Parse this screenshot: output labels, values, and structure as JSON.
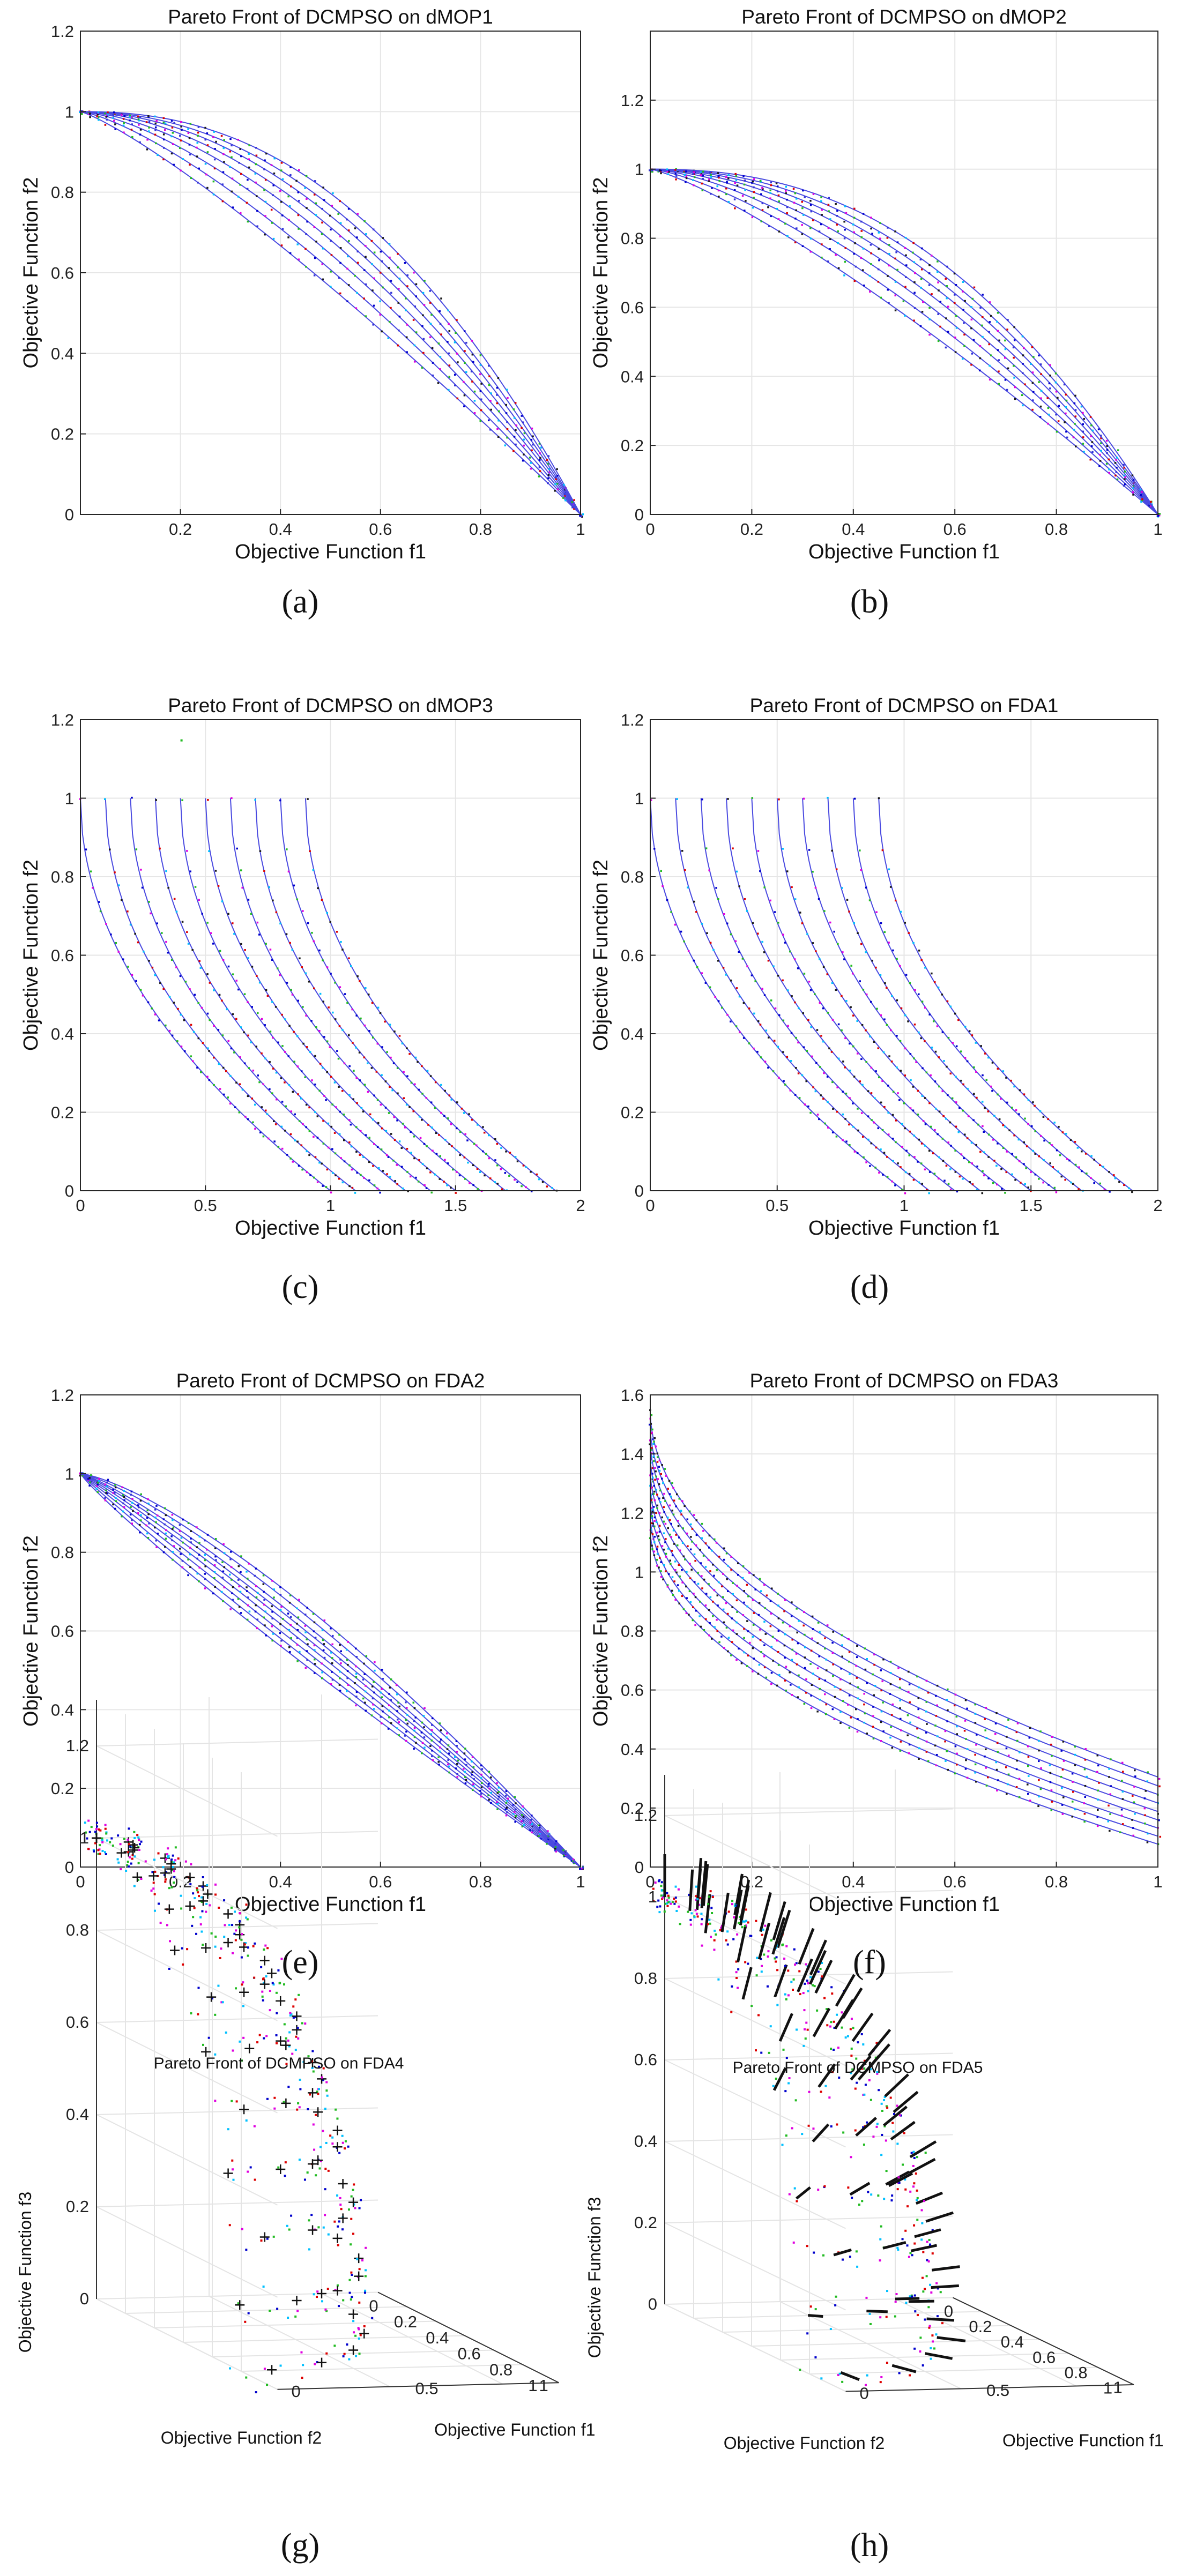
{
  "figure": {
    "captions": [
      "(a)",
      "(b)",
      "(c)",
      "(d)",
      "(e)",
      "(f)",
      "(g)",
      "(h)"
    ]
  },
  "chart_data": [
    {
      "id": "a",
      "type": "scatter",
      "title": "Pareto Front of DCMPSO on dMOP1",
      "xlabel": "Objective Function f1",
      "ylabel": "Objective Function f2",
      "xlim": [
        0,
        1
      ],
      "ylim": [
        0,
        1.2
      ],
      "xticks": [
        0.2,
        0.4,
        0.6,
        0.8,
        1
      ],
      "xtick_labels": [
        "0.2",
        "0.4",
        "0.6",
        "0.8",
        "1"
      ],
      "yticks": [
        0,
        0.2,
        0.4,
        0.6,
        0.8,
        1,
        1.2
      ],
      "ytick_labels": [
        "0",
        "0.2",
        "0.4",
        "0.6",
        "0.8",
        "1",
        "1.2"
      ],
      "family": "f2 = 1 - f1^H",
      "params": [
        1.2,
        1.35,
        1.5,
        1.65,
        1.8,
        1.95,
        2.1,
        2.3
      ],
      "series_colors": [
        "#3535d8",
        "#0000cc",
        "#1a1a1a",
        "#e000e0",
        "#00c0ff",
        "#22bb22",
        "#dd0000"
      ]
    },
    {
      "id": "b",
      "type": "scatter",
      "title": "Pareto Front of DCMPSO on dMOP2",
      "xlabel": "Objective Function f1",
      "ylabel": "Objective Function f2",
      "xlim": [
        0,
        1
      ],
      "ylim": [
        0,
        1.4
      ],
      "xticks": [
        0,
        0.2,
        0.4,
        0.6,
        0.8,
        1
      ],
      "xtick_labels": [
        "0",
        "0.2",
        "0.4",
        "0.6",
        "0.8",
        "1"
      ],
      "yticks": [
        0,
        0.2,
        0.4,
        0.6,
        0.8,
        1,
        1.2
      ],
      "ytick_labels": [
        "0",
        "0.2",
        "0.4",
        "0.6",
        "0.8",
        "1",
        "1.2"
      ],
      "family": "f2 = 1 - f1^H",
      "params": [
        1.25,
        1.4,
        1.55,
        1.7,
        1.85,
        2.0,
        2.15,
        2.35
      ],
      "series_colors": [
        "#3535d8",
        "#0000cc",
        "#1a1a1a",
        "#e000e0",
        "#00c0ff",
        "#22bb22",
        "#dd0000"
      ]
    },
    {
      "id": "c",
      "type": "scatter",
      "title": "Pareto Front of DCMPSO on dMOP3",
      "xlabel": "Objective Function f1",
      "ylabel": "Objective Function f2",
      "xlim": [
        0,
        2
      ],
      "ylim": [
        0,
        1.2
      ],
      "xticks": [
        0,
        0.5,
        1,
        1.5,
        2
      ],
      "xtick_labels": [
        "0",
        "0.5",
        "1",
        "1.5",
        "2"
      ],
      "yticks": [
        0,
        0.2,
        0.4,
        0.6,
        0.8,
        1,
        1.2
      ],
      "ytick_labels": [
        "0",
        "0.2",
        "0.4",
        "0.6",
        "0.8",
        "1",
        "1.2"
      ],
      "family": "f2 = 1 - sqrt(f1 - G), G <= f1 <= G+1",
      "params": [
        0,
        0.1,
        0.2,
        0.3,
        0.4,
        0.5,
        0.6,
        0.7,
        0.8,
        0.9
      ],
      "outliers": [
        [
          0.4,
          1.15
        ]
      ],
      "series_colors": [
        "#e000e0",
        "#00c0ff",
        "#0000cc",
        "#1a1a1a",
        "#22bb22",
        "#dd0000"
      ]
    },
    {
      "id": "d",
      "type": "scatter",
      "title": "Pareto Front of DCMPSO on FDA1",
      "xlabel": "Objective Function f1",
      "ylabel": "Objective Function f2",
      "xlim": [
        0,
        2
      ],
      "ylim": [
        0,
        1.2
      ],
      "xticks": [
        0,
        0.5,
        1,
        1.5,
        2
      ],
      "xtick_labels": [
        "0",
        "0.5",
        "1",
        "1.5",
        "2"
      ],
      "yticks": [
        0,
        0.2,
        0.4,
        0.6,
        0.8,
        1,
        1.2
      ],
      "ytick_labels": [
        "0",
        "0.2",
        "0.4",
        "0.6",
        "0.8",
        "1",
        "1.2"
      ],
      "family": "f2 = 1 - sqrt(f1 - G), G <= f1 <= G+1",
      "params": [
        0,
        0.1,
        0.2,
        0.3,
        0.4,
        0.5,
        0.6,
        0.7,
        0.8,
        0.9
      ],
      "series_colors": [
        "#e000e0",
        "#00c0ff",
        "#0000cc",
        "#1a1a1a",
        "#22bb22",
        "#dd0000"
      ]
    },
    {
      "id": "e",
      "type": "scatter",
      "title": "Pareto Front of DCMPSO on FDA2",
      "xlabel": "Objective Function f1",
      "ylabel": "Objective Function f2",
      "xlim": [
        0,
        1
      ],
      "ylim": [
        0,
        1.2
      ],
      "xticks": [
        0,
        0.2,
        0.4,
        0.6,
        0.8,
        1
      ],
      "xtick_labels": [
        "0",
        "0.2",
        "0.4",
        "0.6",
        "0.8",
        "1"
      ],
      "yticks": [
        0,
        0.2,
        0.4,
        0.6,
        0.8,
        1,
        1.2
      ],
      "ytick_labels": [
        "0",
        "0.2",
        "0.4",
        "0.6",
        "0.8",
        "1",
        "1.2"
      ],
      "family": "f2 = 1 - f1^H",
      "params": [
        0.9,
        0.95,
        1.0,
        1.05,
        1.1,
        1.15,
        1.2,
        1.28,
        1.36
      ],
      "series_colors": [
        "#e000e0",
        "#3535d8",
        "#0000cc",
        "#1a1a1a",
        "#22bb22",
        "#00c0ff"
      ]
    },
    {
      "id": "f",
      "type": "scatter",
      "title": "Pareto Front of DCMPSO on FDA3",
      "xlabel": "Objective Function f1",
      "ylabel": "Objective Function f2",
      "xlim": [
        0,
        1
      ],
      "ylim": [
        0,
        1.6
      ],
      "xticks": [
        0,
        0.2,
        0.4,
        0.6,
        0.8,
        1
      ],
      "xtick_labels": [
        "0",
        "0.2",
        "0.4",
        "0.6",
        "0.8",
        "1"
      ],
      "yticks": [
        0,
        0.2,
        0.4,
        0.6,
        0.8,
        1,
        1.2,
        1.4,
        1.6
      ],
      "ytick_labels": [
        "0",
        "0.2",
        "0.4",
        "0.6",
        "0.8",
        "1",
        "1.2",
        "1.4",
        "1.6"
      ],
      "family": "f2 = (1+G)(1 - sqrt(f1/(1+G)))",
      "params": [
        0.15,
        0.2,
        0.25,
        0.3,
        0.35,
        0.4,
        0.45,
        0.5,
        0.55
      ],
      "series_colors": [
        "#e000e0",
        "#0000cc",
        "#1a1a1a",
        "#00c0ff",
        "#22bb22",
        "#dd0000"
      ]
    },
    {
      "id": "g",
      "type": "scatter",
      "title": "Pareto Front of DCMPSO on FDA4",
      "xlabel": "Objective Function f1",
      "ylabel": "Objective Function f2",
      "zlabel": "Objective Function f3",
      "xticks": [
        0,
        0.5,
        1
      ],
      "xtick_labels": [
        "0",
        "0.5",
        "1"
      ],
      "yticks": [
        0,
        0.2,
        0.4,
        0.6,
        0.8,
        1
      ],
      "ytick_labels": [
        "0",
        "0.2",
        "0.4",
        "0.6",
        "0.8",
        "1"
      ],
      "zticks": [
        0,
        0.2,
        0.4,
        0.6,
        0.8,
        1,
        1.2
      ],
      "ztick_labels": [
        "0",
        "0.2",
        "0.4",
        "0.6",
        "0.8",
        "1",
        "1.2"
      ],
      "surface": "unit sphere octant f1^2+f2^2+f3^2 = 1",
      "marker": "+",
      "series_colors": [
        "#e000e0",
        "#00c0ff",
        "#22bb22",
        "#0000cc",
        "#dd0000"
      ]
    },
    {
      "id": "h",
      "type": "scatter",
      "title": "Pareto Front of DCMPSO on FDA5",
      "xlabel": "Objective Function f1",
      "ylabel": "Objective Function f2",
      "zlabel": "Objective Function f3",
      "xticks": [
        0,
        0.5,
        1
      ],
      "xtick_labels": [
        "0",
        "0.5",
        "1"
      ],
      "yticks": [
        0,
        0.2,
        0.4,
        0.6,
        0.8,
        1
      ],
      "ytick_labels": [
        "0",
        "0.2",
        "0.4",
        "0.6",
        "0.8",
        "1"
      ],
      "zticks": [
        0,
        0.2,
        0.4,
        0.6,
        0.8,
        1,
        1.2
      ],
      "ztick_labels": [
        "0",
        "0.2",
        "0.4",
        "0.6",
        "0.8",
        "1",
        "1.2"
      ],
      "surface": "sphere octant radius 1..1.3",
      "marker": "radial-dash",
      "series_colors": [
        "#e000e0",
        "#00c0ff",
        "#22bb22",
        "#0000cc",
        "#dd0000"
      ]
    }
  ]
}
